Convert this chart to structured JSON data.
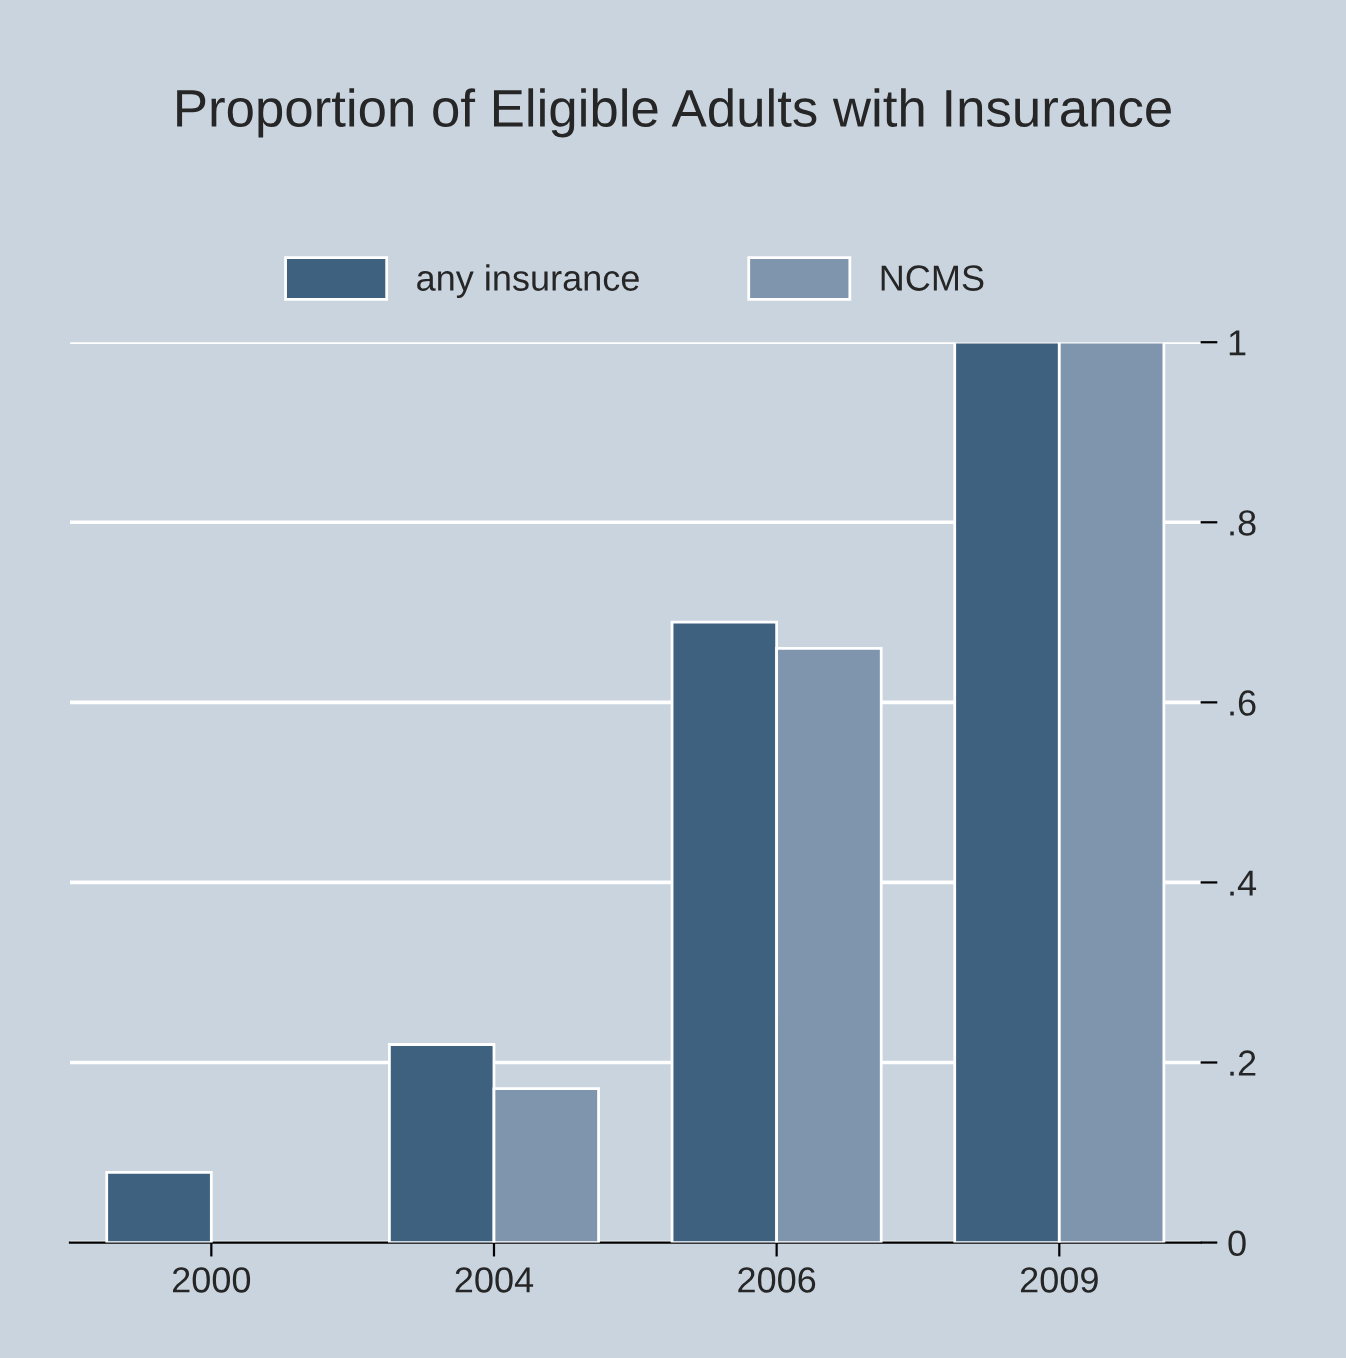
{
  "chart_data": {
    "type": "bar",
    "title": "Proportion of Eligible Adults with Insurance",
    "categories": [
      "2000",
      "2004",
      "2006",
      "2009"
    ],
    "series": [
      {
        "name": "any insurance",
        "color": "#3e6180",
        "values": [
          0.078,
          0.22,
          0.689,
          1.0
        ]
      },
      {
        "name": "NCMS",
        "color": "#7f95ad",
        "values": [
          null,
          0.171,
          0.66,
          1.0
        ]
      }
    ],
    "ylim": [
      0,
      1
    ],
    "yticks": [
      0,
      {
        "value": 0.2,
        "label": ".2"
      },
      {
        "value": 0.4,
        "label": ".4"
      },
      {
        "value": 0.6,
        "label": ".6"
      },
      {
        "value": 0.8,
        "label": ".8"
      },
      1
    ],
    "grid": "y",
    "legend": "top"
  }
}
